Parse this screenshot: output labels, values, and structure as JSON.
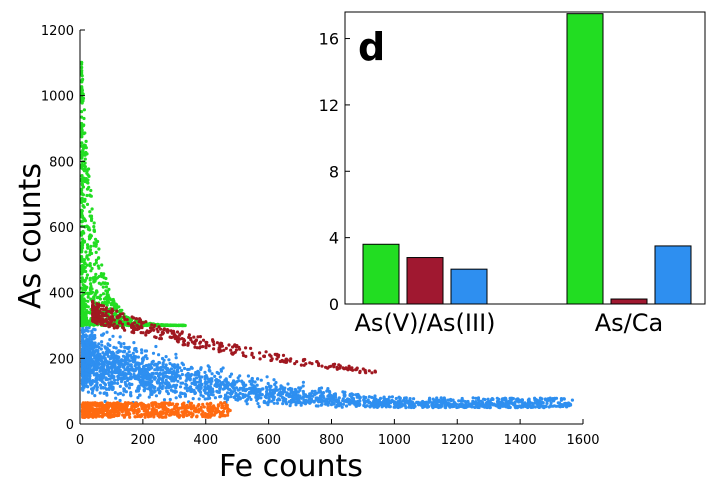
{
  "chart_data": [
    {
      "type": "scatter",
      "xlabel": "Fe counts",
      "ylabel": "As counts",
      "xlim": [
        0,
        1600
      ],
      "ylim": [
        0,
        1200
      ],
      "x_ticks": [
        0,
        200,
        400,
        600,
        800,
        1000,
        1200,
        1400,
        1600
      ],
      "y_ticks": [
        0,
        200,
        400,
        600,
        800,
        1000,
        1200
      ],
      "grid": false,
      "series": [
        {
          "color": "#2e8ff0",
          "description_points": [
            [
              20,
              180
            ],
            [
              100,
              170
            ],
            [
              200,
              150
            ],
            [
              400,
              125
            ],
            [
              600,
              105
            ],
            [
              800,
              90
            ],
            [
              1000,
              78
            ],
            [
              1200,
              65
            ],
            [
              1400,
              52
            ],
            [
              1560,
              45
            ]
          ]
        },
        {
          "color": "#22dd22",
          "description_points": [
            [
              30,
              1190
            ],
            [
              40,
              1000
            ],
            [
              50,
              800
            ],
            [
              100,
              600
            ],
            [
              150,
              450
            ],
            [
              220,
              420
            ],
            [
              300,
              360
            ]
          ]
        },
        {
          "color": "#a01820",
          "description_points": [
            [
              80,
              330
            ],
            [
              150,
              300
            ],
            [
              250,
              260
            ],
            [
              350,
              240
            ],
            [
              500,
              200
            ],
            [
              700,
              180
            ],
            [
              940,
              180
            ]
          ]
        },
        {
          "color": "#ff6a10",
          "description_points": [
            [
              30,
              30
            ],
            [
              100,
              40
            ],
            [
              200,
              50
            ],
            [
              300,
              45
            ],
            [
              400,
              35
            ],
            [
              480,
              55
            ]
          ]
        }
      ]
    },
    {
      "type": "bar",
      "panel_label": "d",
      "categories": [
        "As(V)/As(III)",
        "As/Ca"
      ],
      "yticks": [
        0,
        4,
        8,
        12,
        16
      ],
      "ylim": [
        0,
        17.6
      ],
      "series": [
        {
          "color": "#22dd22",
          "values": [
            3.6,
            17.5
          ]
        },
        {
          "color": "#a01830",
          "values": [
            2.8,
            0.3
          ]
        },
        {
          "color": "#2e8ff0",
          "values": [
            2.1,
            3.5
          ]
        }
      ]
    }
  ]
}
